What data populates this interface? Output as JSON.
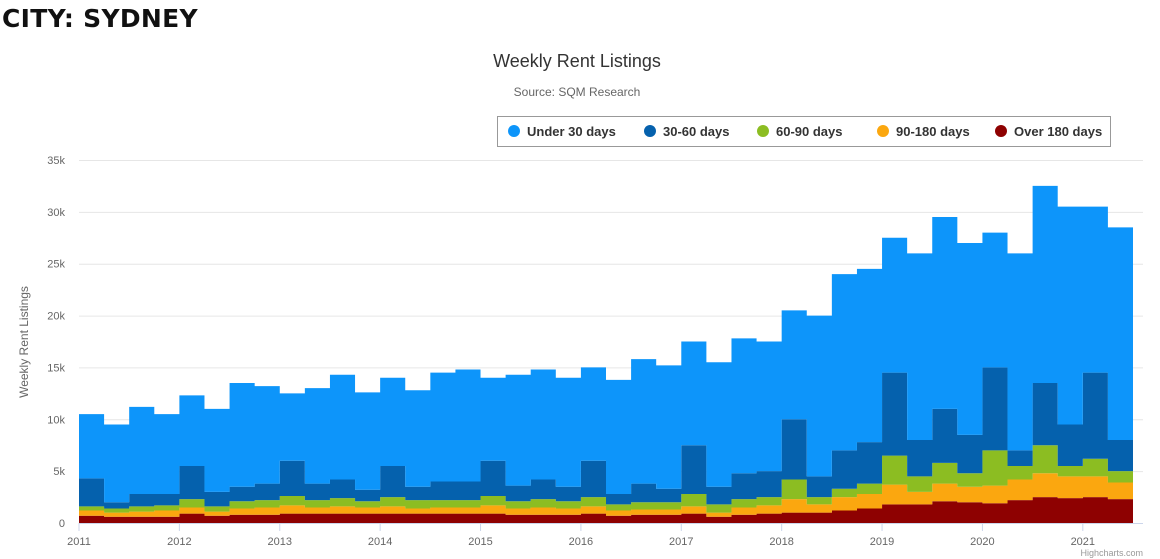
{
  "page_heading": "CITY: SYDNEY",
  "credit": "Highcharts.com",
  "chart_data": {
    "type": "area",
    "stacked": true,
    "step": true,
    "title": "Weekly Rent Listings",
    "subtitle": "Source: SQM Research",
    "xlabel": "",
    "ylabel": "Weekly Rent Listings",
    "ylim": [
      0,
      35000
    ],
    "y_ticks": [
      "0",
      "5k",
      "10k",
      "15k",
      "20k",
      "25k",
      "30k",
      "35k"
    ],
    "y_tick_values": [
      0,
      5000,
      10000,
      15000,
      20000,
      25000,
      30000,
      35000
    ],
    "x_ticks": [
      "2011",
      "2012",
      "2013",
      "2014",
      "2015",
      "2016",
      "2017",
      "2018",
      "2019",
      "2020",
      "2021"
    ],
    "grid": true,
    "legend_position": "top-right",
    "x": [
      "2011-01",
      "2011-04",
      "2011-07",
      "2011-10",
      "2012-01",
      "2012-04",
      "2012-07",
      "2012-10",
      "2013-01",
      "2013-04",
      "2013-07",
      "2013-10",
      "2014-01",
      "2014-04",
      "2014-07",
      "2014-10",
      "2015-01",
      "2015-04",
      "2015-07",
      "2015-10",
      "2016-01",
      "2016-04",
      "2016-07",
      "2016-10",
      "2017-01",
      "2017-04",
      "2017-07",
      "2017-10",
      "2018-01",
      "2018-04",
      "2018-07",
      "2018-10",
      "2019-01",
      "2019-04",
      "2019-07",
      "2019-10",
      "2020-01",
      "2020-04",
      "2020-07",
      "2020-10",
      "2021-01",
      "2021-04",
      "2021-07"
    ],
    "series": [
      {
        "name": "Under 30 days",
        "color": "#0d95fa",
        "values": [
          6200,
          7500,
          8400,
          7700,
          6800,
          8000,
          10000,
          9400,
          6500,
          9200,
          10100,
          9400,
          8500,
          9300,
          10500,
          10800,
          8000,
          10700,
          10600,
          10500,
          9000,
          11000,
          12000,
          11900,
          10000,
          12000,
          13000,
          12500,
          10500,
          15500,
          17000,
          16700,
          13000,
          18000,
          18500,
          18500,
          13000,
          19000,
          19000,
          21000,
          16000,
          20500,
          16500
        ]
      },
      {
        "name": "30-60 days",
        "color": "#0561ad",
        "values": [
          2700,
          600,
          1200,
          1100,
          3200,
          1400,
          1400,
          1600,
          3400,
          1600,
          1800,
          1100,
          3000,
          1300,
          1800,
          1800,
          3400,
          1500,
          1900,
          1400,
          3500,
          1000,
          1800,
          1300,
          4700,
          1700,
          2500,
          2500,
          5800,
          2000,
          3700,
          4000,
          8000,
          3500,
          5200,
          3700,
          8000,
          1500,
          6000,
          4000,
          8300,
          3000,
          3500
        ]
      },
      {
        "name": "60-90 days",
        "color": "#8cbd22",
        "values": [
          400,
          400,
          500,
          500,
          800,
          500,
          700,
          700,
          900,
          700,
          800,
          600,
          900,
          800,
          700,
          700,
          900,
          700,
          800,
          700,
          900,
          600,
          700,
          700,
          1200,
          800,
          800,
          800,
          1900,
          700,
          800,
          1000,
          2800,
          1500,
          2000,
          1300,
          3400,
          1300,
          2700,
          1000,
          1700,
          1100,
          1300
        ]
      },
      {
        "name": "90-180 days",
        "color": "#fba70f",
        "values": [
          500,
          400,
          500,
          600,
          600,
          400,
          600,
          700,
          800,
          600,
          700,
          600,
          700,
          500,
          600,
          600,
          800,
          600,
          700,
          600,
          700,
          500,
          500,
          500,
          700,
          400,
          700,
          800,
          1300,
          800,
          1300,
          1400,
          1900,
          1200,
          1700,
          1500,
          1700,
          2000,
          2300,
          2100,
          2000,
          1600,
          1700
        ]
      },
      {
        "name": "Over 180 days",
        "color": "#8e0101",
        "values": [
          700,
          600,
          600,
          600,
          900,
          700,
          800,
          800,
          900,
          900,
          900,
          900,
          900,
          900,
          900,
          900,
          900,
          800,
          800,
          800,
          900,
          700,
          800,
          800,
          900,
          600,
          800,
          900,
          1000,
          1000,
          1200,
          1400,
          1800,
          1800,
          2100,
          2000,
          1900,
          2200,
          2500,
          2400,
          2500,
          2300,
          2000
        ]
      }
    ]
  }
}
